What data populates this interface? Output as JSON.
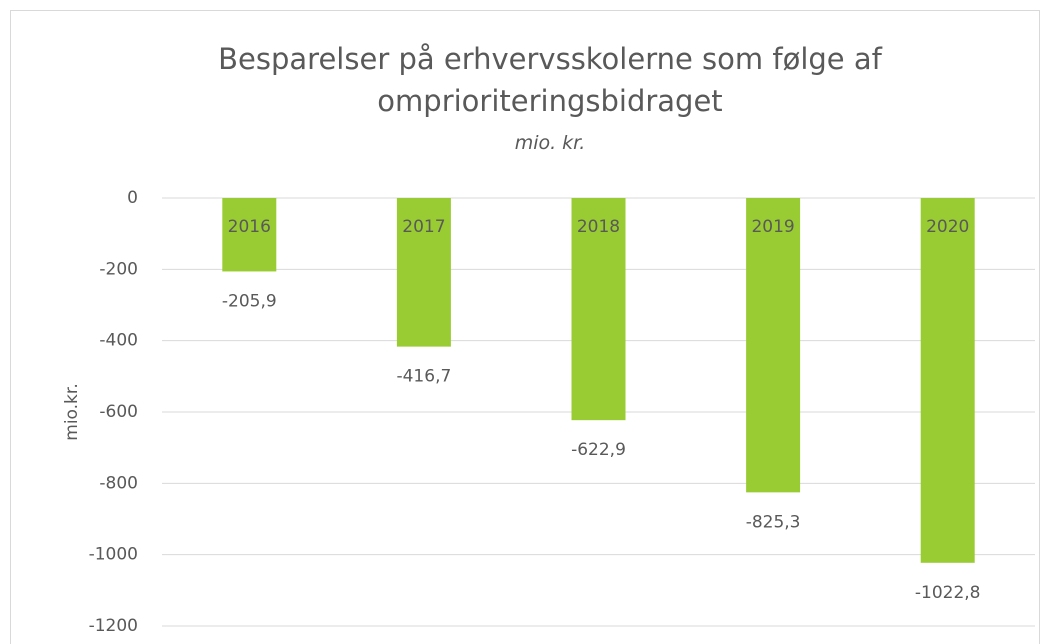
{
  "chart_data": {
    "type": "bar",
    "title": "Besparelser på erhvervsskolerne som følge af omprioriteringsbidraget",
    "subtitle": "mio. kr.",
    "y_label": "mio.kr.",
    "categories": [
      "2016",
      "2017",
      "2018",
      "2019",
      "2020"
    ],
    "values": [
      -205.9,
      -416.7,
      -622.9,
      -825.3,
      -1022.8
    ],
    "value_labels": [
      "-205,9",
      "-416,7",
      "-622,9",
      "-825,3",
      "-1022,8"
    ],
    "color": "#99cc33",
    "ylim": [
      -1200,
      0
    ],
    "yticks": [
      0,
      -200,
      -400,
      -600,
      -800,
      -1000,
      -1200
    ],
    "grid": true
  }
}
